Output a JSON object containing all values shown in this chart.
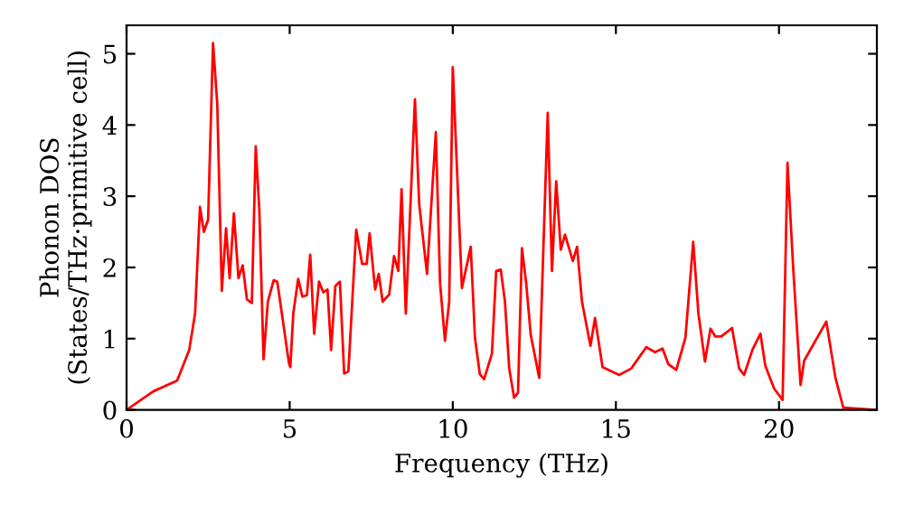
{
  "chart_data": {
    "type": "line",
    "xlabel": "Frequency (THz)",
    "ylabel": "Phonon DOS\n(States/THz·primitive cell)",
    "xlim": [
      0,
      23
    ],
    "ylim": [
      0,
      5.4
    ],
    "xticks": [
      0,
      5,
      10,
      15,
      20
    ],
    "yticks": [
      0,
      1,
      2,
      3,
      4,
      5
    ],
    "grid": false,
    "legend": false,
    "marker": "none",
    "line_style": "solid",
    "series": [
      {
        "color": "#ff0000",
        "x": [
          0,
          0.82,
          1.55,
          1.92,
          2.1,
          2.25,
          2.37,
          2.5,
          2.65,
          2.78,
          2.92,
          3.05,
          3.16,
          3.29,
          3.43,
          3.56,
          3.69,
          3.84,
          3.96,
          4.07,
          4.2,
          4.33,
          4.51,
          4.62,
          4.98,
          5.02,
          5.11,
          5.26,
          5.39,
          5.53,
          5.63,
          5.75,
          5.9,
          6.03,
          6.16,
          6.27,
          6.4,
          6.54,
          6.67,
          6.8,
          7.04,
          7.22,
          7.36,
          7.45,
          7.62,
          7.73,
          7.85,
          8.05,
          8.2,
          8.33,
          8.43,
          8.56,
          8.84,
          8.97,
          9.21,
          9.48,
          9.61,
          9.76,
          9.89,
          10.0,
          10.28,
          10.55,
          10.68,
          10.83,
          10.96,
          11.2,
          11.33,
          11.47,
          11.6,
          11.73,
          11.88,
          12.0,
          12.12,
          12.25,
          12.39,
          12.65,
          12.91,
          13.04,
          13.17,
          13.31,
          13.44,
          13.68,
          13.81,
          13.96,
          14.22,
          14.36,
          14.59,
          15.1,
          15.47,
          15.93,
          16.2,
          16.43,
          16.61,
          16.85,
          17.13,
          17.37,
          17.53,
          17.73,
          17.9,
          18.05,
          18.23,
          18.56,
          18.78,
          18.93,
          19.19,
          19.43,
          19.58,
          19.85,
          20.11,
          20.26,
          20.44,
          20.66,
          20.77,
          21.45,
          21.73,
          21.97,
          22.9
        ],
        "values": [
          0,
          0.26,
          0.41,
          0.84,
          1.35,
          2.85,
          2.5,
          2.67,
          5.15,
          4.3,
          1.67,
          2.55,
          1.85,
          2.76,
          1.85,
          2.03,
          1.55,
          1.5,
          3.7,
          2.8,
          0.71,
          1.52,
          1.82,
          1.8,
          0.65,
          0.6,
          1.35,
          1.84,
          1.59,
          1.61,
          2.18,
          1.07,
          1.8,
          1.65,
          1.69,
          0.84,
          1.74,
          1.8,
          0.51,
          0.54,
          2.53,
          2.05,
          2.05,
          2.48,
          1.69,
          1.91,
          1.52,
          1.62,
          2.16,
          1.95,
          3.1,
          1.35,
          4.36,
          2.89,
          1.91,
          3.9,
          1.78,
          0.97,
          1.52,
          4.81,
          1.71,
          2.29,
          1.01,
          0.5,
          0.43,
          0.79,
          1.95,
          1.97,
          1.52,
          0.58,
          0.17,
          0.24,
          2.27,
          1.78,
          1.05,
          0.45,
          4.17,
          1.95,
          3.21,
          2.25,
          2.46,
          2.09,
          2.29,
          1.52,
          0.9,
          1.29,
          0.6,
          0.49,
          0.58,
          0.88,
          0.81,
          0.86,
          0.64,
          0.56,
          1.01,
          2.36,
          1.35,
          0.68,
          1.14,
          1.03,
          1.03,
          1.15,
          0.58,
          0.49,
          0.85,
          1.07,
          0.62,
          0.3,
          0.14,
          3.47,
          1.95,
          0.35,
          0.69,
          1.24,
          0.45,
          0.03,
          0
        ]
      }
    ]
  }
}
